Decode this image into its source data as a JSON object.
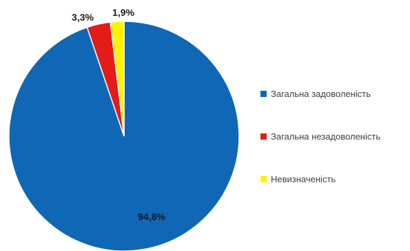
{
  "chart_data": {
    "type": "pie",
    "title": "",
    "categories": [
      "Загальна задоволеність",
      "Загальна незадоволеність",
      "Невизначеність"
    ],
    "values": [
      94.8,
      3.3,
      1.9
    ],
    "labels": [
      "94,8%",
      "3,3%",
      "1,9%"
    ],
    "colors": [
      "#0F67B6",
      "#E41B17",
      "#FFF200"
    ],
    "start": "12 o'clock",
    "direction": "clockwise",
    "legend_position": "right"
  },
  "legend": {
    "items": [
      {
        "label": "Загальна задоволеність",
        "color": "#0F67B6"
      },
      {
        "label": "Загальна незадоволеність",
        "color": "#E41B17"
      },
      {
        "label": "Невизначеність",
        "color": "#FFF200"
      }
    ]
  }
}
